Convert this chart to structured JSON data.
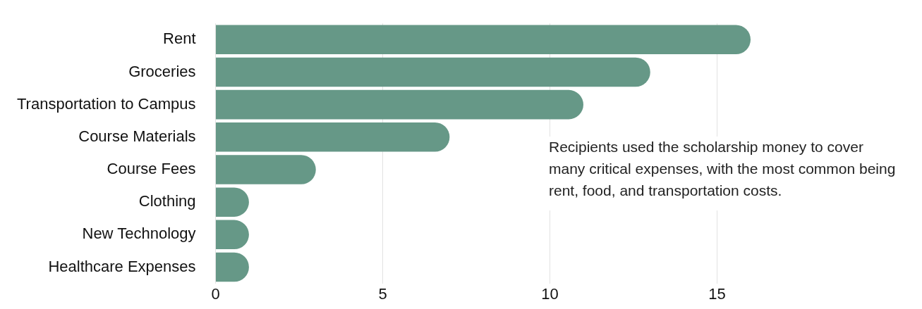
{
  "chart_data": {
    "type": "bar",
    "orientation": "horizontal",
    "categories": [
      "Rent",
      "Groceries",
      "Transportation to Campus",
      "Course Materials",
      "Course Fees",
      "Clothing",
      "New Technology",
      "Healthcare Expenses"
    ],
    "values": [
      16,
      13,
      11,
      7,
      3,
      1,
      1,
      1
    ],
    "color": "#669887",
    "xlim": [
      0,
      16
    ],
    "xticks": [
      0,
      5,
      10,
      15
    ],
    "grid": "x",
    "annotations": [
      "Recipients used the scholarship money to cover many critical expenses, with the most common being rent, food, and transportation costs."
    ]
  }
}
